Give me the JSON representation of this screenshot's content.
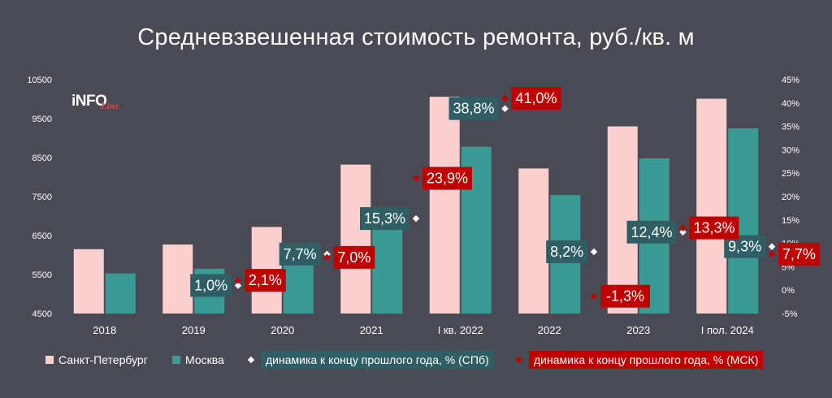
{
  "chart_data": {
    "type": "bar",
    "title": "Средневзвешенная стоимость ремонта, руб./кв. м",
    "categories": [
      "2018",
      "2019",
      "2020",
      "2021",
      "I кв. 2022",
      "2022",
      "2023",
      "I пол. 2024"
    ],
    "ylim": [
      4500,
      10500
    ],
    "yticks": [
      4500,
      5500,
      6500,
      7500,
      8500,
      9500,
      10500
    ],
    "y2lim": [
      -5,
      45
    ],
    "y2ticks": [
      "-5%",
      "0%",
      "5%",
      "10%",
      "15%",
      "20%",
      "25%",
      "30%",
      "35%",
      "40%",
      "45%"
    ],
    "series": [
      {
        "name": "Санкт-Петербург",
        "type": "bar",
        "color": "#fbcfcf",
        "values": [
          6150,
          6270,
          6720,
          8320,
          10060,
          8220,
          9300,
          10010
        ]
      },
      {
        "name": "Москва",
        "type": "bar",
        "color": "#3b9a94",
        "values": [
          5530,
          5650,
          6050,
          6950,
          8780,
          7540,
          8480,
          9250
        ]
      },
      {
        "name": "динамика к концу прошлого года, % (СПб)",
        "type": "marker",
        "axis": "right",
        "color": "#ffffff",
        "label_bg": "#2f5f64",
        "values": [
          null,
          1.0,
          7.7,
          15.3,
          38.8,
          8.2,
          12.4,
          9.3
        ],
        "labels": [
          "",
          "1,0%",
          "7,7%",
          "15,3%",
          "38,8%",
          "8,2%",
          "12,4%",
          "9,3%"
        ]
      },
      {
        "name": "динамика к концу прошлого года, % (МСК)",
        "type": "marker",
        "axis": "right",
        "color": "#c00000",
        "label_bg": "#c00000",
        "values": [
          null,
          2.1,
          7.0,
          23.9,
          41.0,
          -1.3,
          13.3,
          7.7
        ],
        "labels": [
          "",
          "2,1%",
          "7,0%",
          "23,9%",
          "41,0%",
          "-1,3%",
          "13,3%",
          "7,7%"
        ]
      }
    ]
  },
  "logo": {
    "main": "iNFO",
    "script": "Line"
  }
}
